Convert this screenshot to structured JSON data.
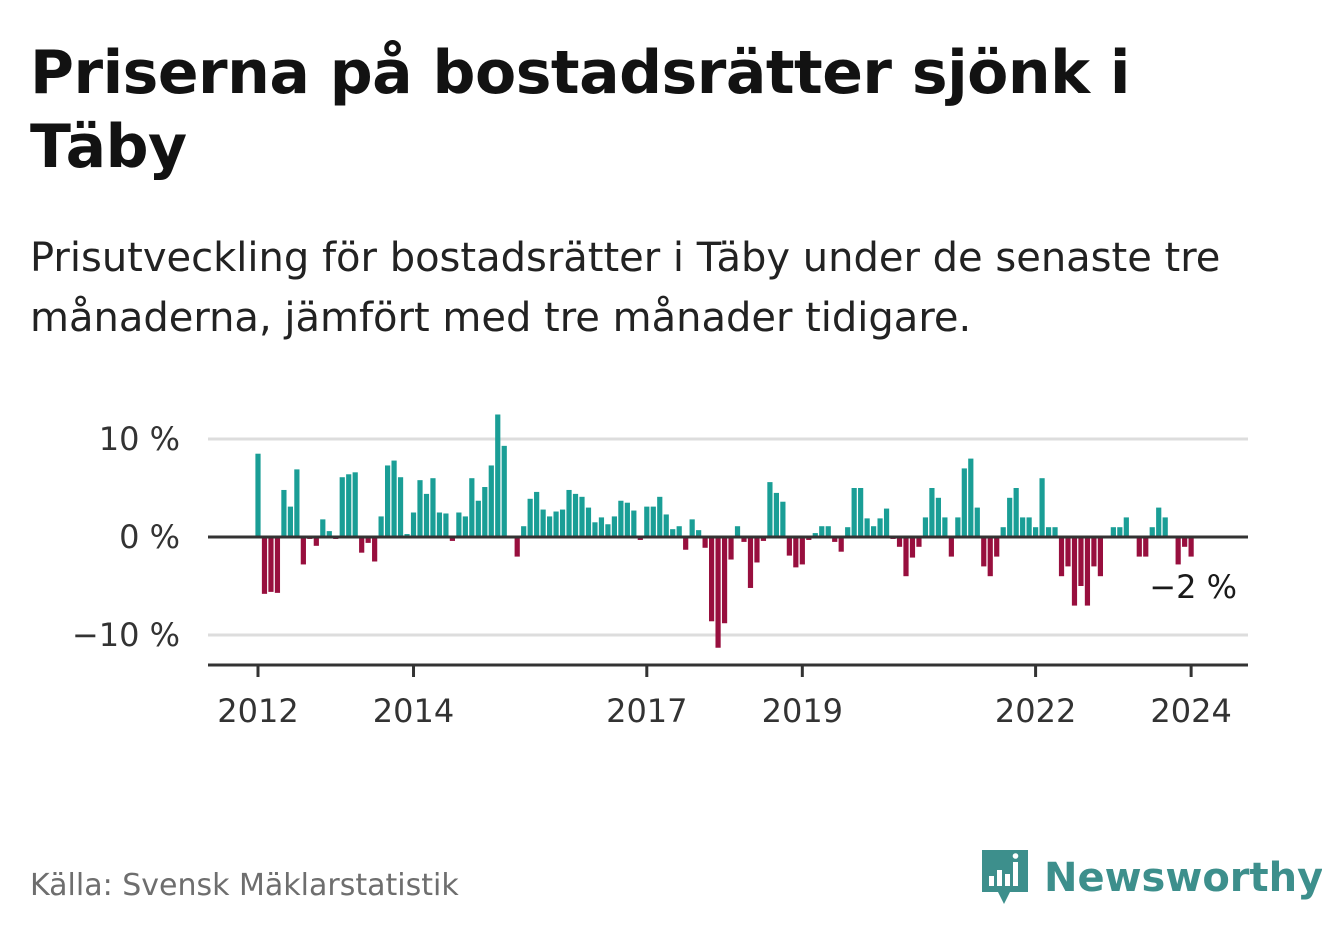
{
  "title": "Priserna på bostadsrätter sjönk i Täby",
  "subtitle": "Prisutveckling för bostadsrätter i Täby under de senaste tre månaderna, jämfört med tre månader tidigare.",
  "source": "Källa: Svensk Mäklarstatistik",
  "brand": {
    "name": "Newsworthy",
    "icon": "newsworthy-logo-icon",
    "color": "#3d8f8c"
  },
  "colors": {
    "positive": "#1a9e96",
    "negative": "#980f3e",
    "grid": "#dddddd",
    "axis": "#333333"
  },
  "chart_data": {
    "type": "bar",
    "title": "",
    "xlabel": "",
    "ylabel": "",
    "unit": "%",
    "ylim": [
      -13,
      13
    ],
    "y_ticks": [
      {
        "value": 10,
        "label": "10 %"
      },
      {
        "value": 0,
        "label": "0 %"
      },
      {
        "value": -10,
        "label": "−10 %"
      }
    ],
    "x_ticks": [
      {
        "year": 2012,
        "label": "2012"
      },
      {
        "year": 2014,
        "label": "2014"
      },
      {
        "year": 2017,
        "label": "2017"
      },
      {
        "year": 2019,
        "label": "2019"
      },
      {
        "year": 2022,
        "label": "2022"
      },
      {
        "year": 2024,
        "label": "2024"
      }
    ],
    "start": {
      "year": 2012,
      "month": 1
    },
    "end_label": "−2 %",
    "values": [
      8.5,
      -5.8,
      -5.6,
      -5.7,
      4.8,
      3.1,
      6.9,
      -2.8,
      -0.2,
      -0.9,
      1.8,
      0.6,
      -0.2,
      6.1,
      6.4,
      6.6,
      -1.6,
      -0.6,
      -2.5,
      2.1,
      7.3,
      7.8,
      6.1,
      0.3,
      2.5,
      5.8,
      4.4,
      6.0,
      2.5,
      2.4,
      -0.4,
      2.5,
      2.1,
      6.0,
      3.7,
      5.1,
      7.3,
      12.5,
      9.3,
      0.1,
      -2.0,
      1.1,
      3.9,
      4.6,
      2.8,
      2.1,
      2.6,
      2.8,
      4.8,
      4.4,
      4.1,
      3.0,
      1.5,
      2.0,
      1.3,
      2.1,
      3.7,
      3.5,
      2.7,
      -0.3,
      3.1,
      3.1,
      4.1,
      2.3,
      0.8,
      1.1,
      -1.3,
      1.8,
      0.7,
      -1.1,
      -8.6,
      -11.3,
      -8.8,
      -2.3,
      1.1,
      -0.5,
      -5.2,
      -2.6,
      -0.4,
      5.6,
      4.5,
      3.6,
      -1.9,
      -3.1,
      -2.8,
      -0.3,
      0.4,
      1.1,
      1.1,
      -0.5,
      -1.5,
      1.0,
      5.0,
      5.0,
      1.9,
      1.1,
      1.9,
      2.9,
      -0.2,
      -1.0,
      -4.0,
      -2.1,
      -1.0,
      2.0,
      5.0,
      4.0,
      2.0,
      -2.0,
      2.0,
      7.0,
      8.0,
      3.0,
      -3.0,
      -4.0,
      -2.0,
      1.0,
      4.0,
      5.0,
      2.0,
      2.0,
      1.0,
      6.0,
      1.0,
      1.0,
      -4.0,
      -3.0,
      -7.0,
      -5.0,
      -7.0,
      -3.0,
      -4.0,
      0.0,
      1.0,
      1.0,
      2.0,
      0.0,
      -2.0,
      -2.0,
      1.0,
      3.0,
      2.0,
      0.0,
      -2.8,
      -1.0,
      -2.0
    ]
  }
}
